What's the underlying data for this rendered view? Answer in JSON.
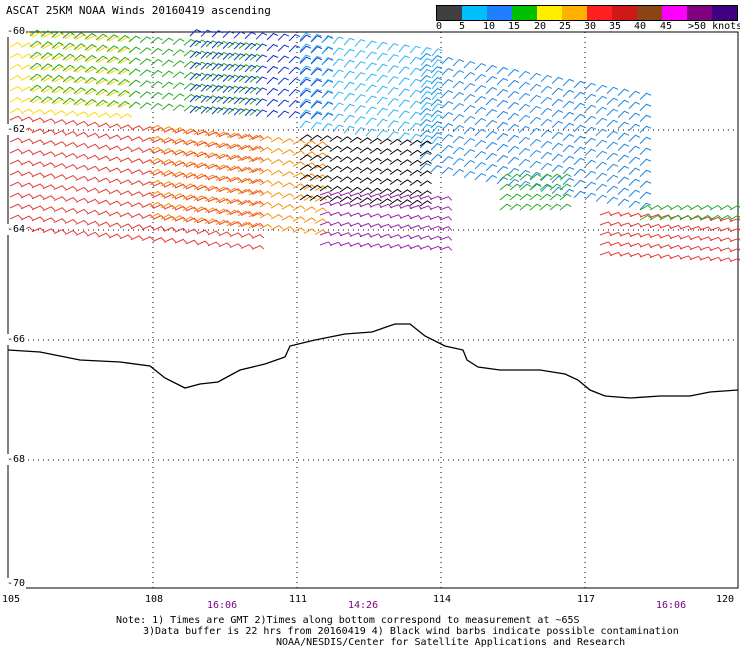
{
  "header": {
    "title": "ASCAT 25KM NOAA Winds 20160419 ascending"
  },
  "legend": {
    "unit_label": ">50 knots",
    "labels": [
      "0",
      "5",
      "10",
      "15",
      "20",
      "25",
      "30",
      "35",
      "40",
      "45"
    ],
    "colors": [
      "#404040",
      "#8c8c8c",
      "#00bfff",
      "#1f7fff",
      "#0000d8",
      "#00c000",
      "#66cc33",
      "#ffee00",
      "#ffb000",
      "#ff6600",
      "#ff2020",
      "#d01818",
      "#8b4513",
      "#c08040",
      "#ff00ff",
      "#cc00cc",
      "#800080",
      "#400080"
    ]
  },
  "axes": {
    "lat_labels": [
      "-60",
      "-62",
      "-64",
      "-66",
      "-68",
      "-70"
    ],
    "lon_labels": [
      "105",
      "108",
      "111",
      "114",
      "117",
      "120"
    ],
    "time_labels": [
      "16:06",
      "14:26",
      "16:06"
    ],
    "time_color": "#800080"
  },
  "notes": [
    "Note: 1) Times are GMT 2)Times along bottom correspond to measurement at ~65S",
    "3)Data buffer is 22 hrs from 20160419 4) Black wind barbs indicate possible contamination",
    "NOAA/NESDIS/Center for Satellite Applications and Research"
  ]
}
